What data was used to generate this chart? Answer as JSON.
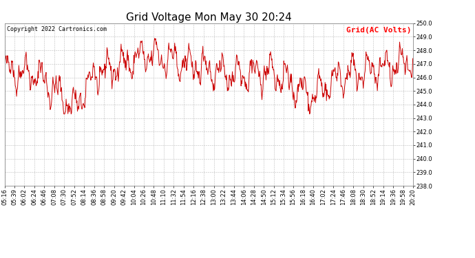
{
  "title": "Grid Voltage Mon May 30 20:24",
  "copyright_text": "Copyright 2022 Cartronics.com",
  "legend_label": "Grid(AC Volts)",
  "legend_color": "#ff0000",
  "line_color": "#cc0000",
  "background_color": "#ffffff",
  "grid_color": "#bbbbbb",
  "ylim": [
    238.0,
    250.0
  ],
  "ytick_min": 238.0,
  "ytick_max": 250.0,
  "ytick_step": 1.0,
  "xtick_labels": [
    "05:16",
    "05:39",
    "06:02",
    "06:24",
    "06:46",
    "07:08",
    "07:30",
    "07:52",
    "08:14",
    "08:36",
    "08:58",
    "09:20",
    "09:42",
    "10:04",
    "10:26",
    "10:48",
    "11:10",
    "11:32",
    "11:54",
    "12:16",
    "12:38",
    "13:00",
    "13:22",
    "13:44",
    "14:06",
    "14:28",
    "14:50",
    "15:12",
    "15:34",
    "15:56",
    "16:18",
    "16:40",
    "17:02",
    "17:24",
    "17:46",
    "18:08",
    "18:30",
    "18:52",
    "19:14",
    "19:36",
    "19:58",
    "20:20"
  ],
  "title_fontsize": 11,
  "label_fontsize": 6,
  "copyright_fontsize": 6,
  "legend_fontsize": 8,
  "line_width": 0.7,
  "random_seed": 42
}
